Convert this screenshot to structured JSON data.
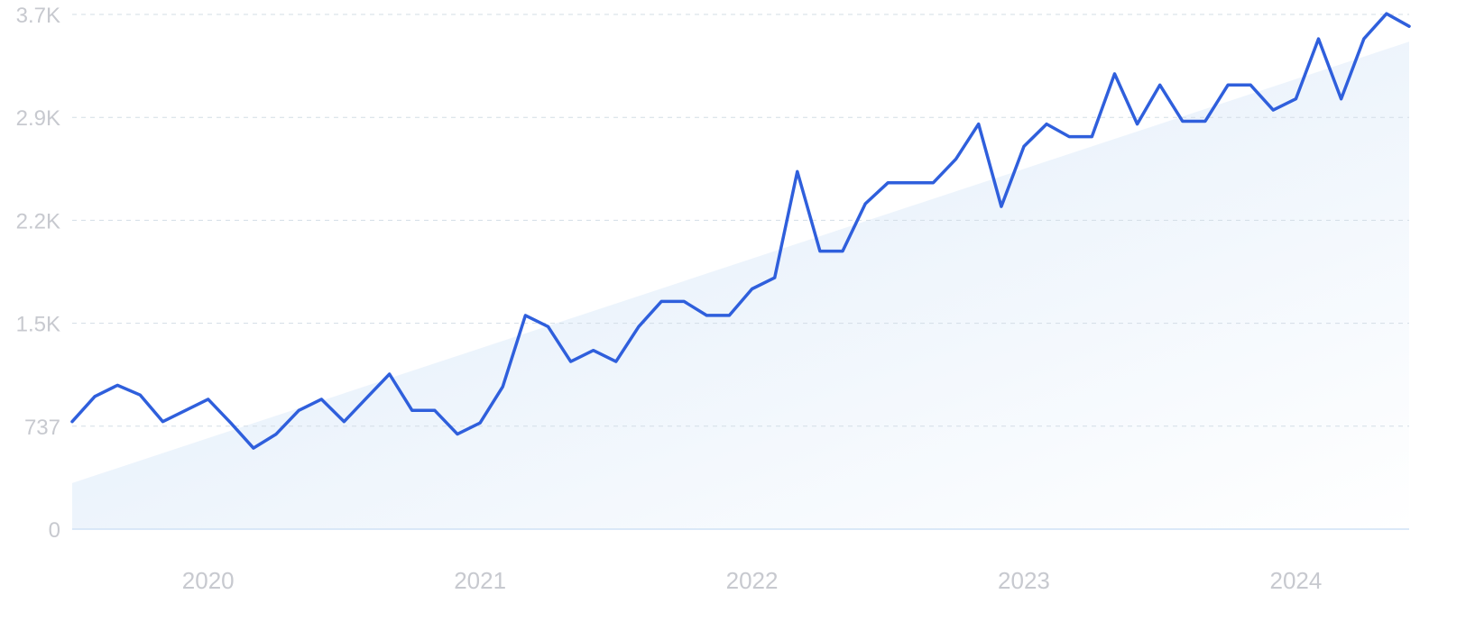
{
  "chart_data": {
    "type": "line",
    "title": "",
    "xlabel": "",
    "ylabel": "",
    "ylim": [
      0,
      3700
    ],
    "grid": true,
    "legend": "none",
    "y_ticks": [
      {
        "value": 0,
        "label": "0"
      },
      {
        "value": 737,
        "label": "737"
      },
      {
        "value": 1474,
        "label": "1.5K"
      },
      {
        "value": 2211,
        "label": "2.2K"
      },
      {
        "value": 2948,
        "label": "2.9K"
      },
      {
        "value": 3685,
        "label": "3.7K"
      }
    ],
    "x_ticks": [
      {
        "value": "2020-01",
        "label": "2020"
      },
      {
        "value": "2021-01",
        "label": "2021"
      },
      {
        "value": "2022-01",
        "label": "2022"
      },
      {
        "value": "2023-01",
        "label": "2023"
      },
      {
        "value": "2024-01",
        "label": "2024"
      }
    ],
    "series": [
      {
        "x": [
          "2019-07",
          "2019-08",
          "2019-09",
          "2019-10",
          "2019-11",
          "2019-12",
          "2020-01",
          "2020-02",
          "2020-03",
          "2020-04",
          "2020-05",
          "2020-06",
          "2020-07",
          "2020-08",
          "2020-09",
          "2020-10",
          "2020-11",
          "2020-12",
          "2021-01",
          "2021-02",
          "2021-03",
          "2021-04",
          "2021-05",
          "2021-06",
          "2021-07",
          "2021-08",
          "2021-09",
          "2021-10",
          "2021-11",
          "2021-12",
          "2022-01",
          "2022-02",
          "2022-03",
          "2022-04",
          "2022-05",
          "2022-06",
          "2022-07",
          "2022-08",
          "2022-09",
          "2022-10",
          "2022-11",
          "2022-12",
          "2023-01",
          "2023-02",
          "2023-03",
          "2023-04",
          "2023-05",
          "2023-06",
          "2023-07",
          "2023-08",
          "2023-09",
          "2023-10",
          "2023-11",
          "2023-12",
          "2024-01",
          "2024-02",
          "2024-03",
          "2024-04",
          "2024-05",
          "2024-06"
        ],
        "values": [
          770,
          950,
          1030,
          960,
          770,
          850,
          930,
          760,
          580,
          680,
          850,
          930,
          770,
          940,
          1110,
          850,
          850,
          680,
          760,
          1020,
          1530,
          1450,
          1200,
          1280,
          1200,
          1450,
          1630,
          1630,
          1530,
          1530,
          1720,
          1800,
          2560,
          1990,
          1990,
          2330,
          2480,
          2480,
          2480,
          2650,
          2900,
          2310,
          2740,
          2900,
          2810,
          2810,
          3260,
          2900,
          3180,
          2920,
          2920,
          3180,
          3180,
          3000,
          3080,
          3510,
          3080,
          3510,
          3690,
          3600
        ]
      }
    ],
    "trend": {
      "start": 330,
      "end": 3490
    },
    "colors": {
      "line": "#2f5fdc",
      "grid": "#d3dde6",
      "baseline": "#cfe2f5",
      "tick": "#c7c9cf",
      "fill_top": "#dceaf9",
      "fill_bottom": "#ffffff"
    }
  }
}
